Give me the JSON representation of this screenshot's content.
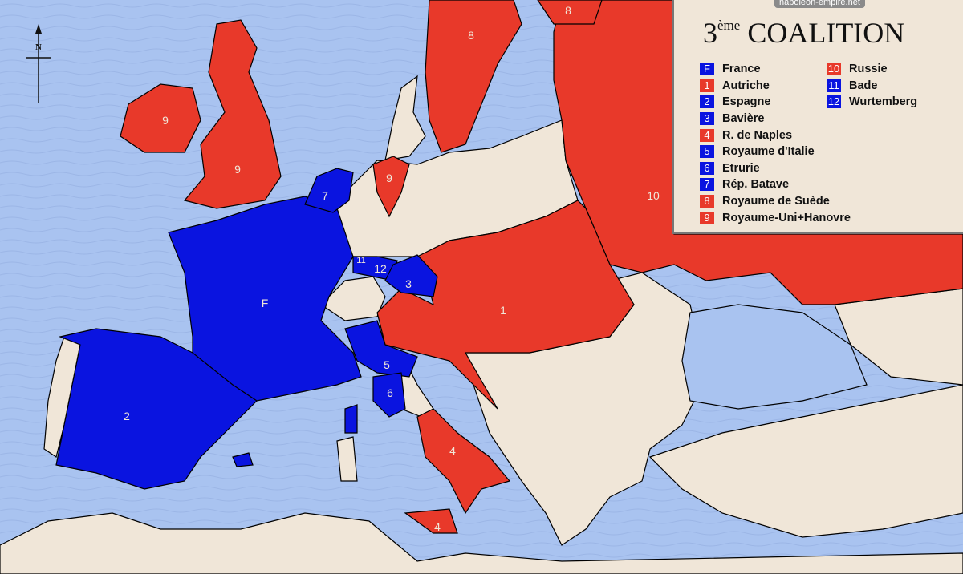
{
  "watermark": "napoleon-empire.net",
  "title": {
    "number": "3",
    "suffix": "ème",
    "text": "COALITION"
  },
  "colors": {
    "sea": "#a9c3f0",
    "land": "#f0e6d8",
    "coalition": "#e8392a",
    "france_allies": "#0a14e0"
  },
  "compass": {
    "icon": "north-arrow-icon",
    "label": "N"
  },
  "legend": {
    "col1": [
      {
        "code": "F",
        "name": "France",
        "color": "#0a14e0"
      },
      {
        "code": "1",
        "name": "Autriche",
        "color": "#e8392a"
      },
      {
        "code": "2",
        "name": "Espagne",
        "color": "#0a14e0"
      },
      {
        "code": "3",
        "name": "Bavière",
        "color": "#0a14e0"
      },
      {
        "code": "4",
        "name": "R. de Naples",
        "color": "#e8392a"
      },
      {
        "code": "5",
        "name": "Royaume d'Italie",
        "color": "#0a14e0"
      },
      {
        "code": "6",
        "name": "Etrurie",
        "color": "#0a14e0"
      },
      {
        "code": "7",
        "name": "Rép. Batave",
        "color": "#0a14e0"
      },
      {
        "code": "8",
        "name": "Royaume de Suède",
        "color": "#e8392a"
      },
      {
        "code": "9",
        "name": "Royaume-Uni+Hanovre",
        "color": "#e8392a"
      }
    ],
    "col2": [
      {
        "code": "10",
        "name": "Russie",
        "color": "#e8392a"
      },
      {
        "code": "11",
        "name": "Bade",
        "color": "#0a14e0"
      },
      {
        "code": "12",
        "name": "Wurtemberg",
        "color": "#0a14e0"
      }
    ]
  },
  "map_labels": {
    "france": "F",
    "austria": "1",
    "spain": "2",
    "bavaria": "3",
    "naples": "4",
    "sicily": "4",
    "italy": "5",
    "etruria": "6",
    "batavia": "7",
    "sweden": "8",
    "sweden_north": "8",
    "ireland": "9",
    "britain": "9",
    "hanover": "9",
    "russia": "10",
    "baden": "11",
    "wurtemberg": "12"
  }
}
